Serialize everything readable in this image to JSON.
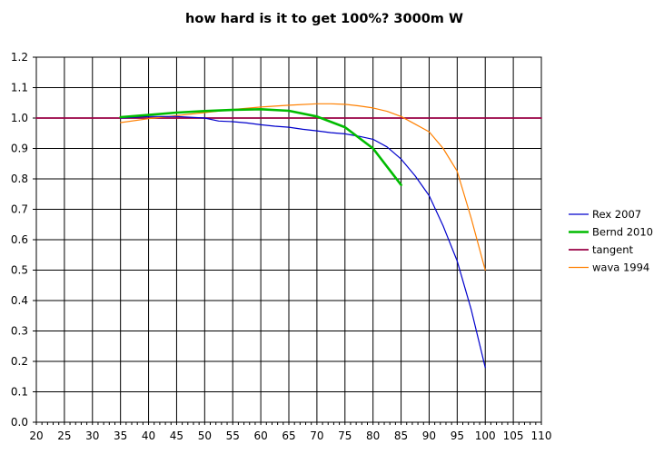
{
  "chart_data": {
    "type": "line",
    "title": "how hard is it to get 100%? 3000m W",
    "xlabel": "",
    "ylabel": "",
    "xlim": [
      20,
      110
    ],
    "ylim": [
      0,
      1.2
    ],
    "x_ticks": [
      20,
      25,
      30,
      35,
      40,
      45,
      50,
      55,
      60,
      65,
      70,
      75,
      80,
      85,
      90,
      95,
      100,
      105,
      110
    ],
    "y_ticks": [
      "0.0",
      "0.1",
      "0.2",
      "0.3",
      "0.4",
      "0.5",
      "0.6",
      "0.7",
      "0.8",
      "0.9",
      "1.0",
      "1.1",
      "1.2"
    ],
    "grid": true,
    "legend_position": "right",
    "series": [
      {
        "name": "Rex 2007",
        "color": "#0000cc",
        "x": [
          35,
          40,
          45,
          50,
          52.5,
          55,
          57.5,
          60,
          62.5,
          65,
          67.5,
          70,
          72.5,
          75,
          77.5,
          80,
          82.5,
          85,
          87.5,
          90,
          92.5,
          95,
          97.5,
          100
        ],
        "values": [
          1.0,
          1.005,
          1.005,
          1.0,
          0.99,
          0.988,
          0.984,
          0.978,
          0.973,
          0.97,
          0.963,
          0.958,
          0.952,
          0.948,
          0.94,
          0.93,
          0.905,
          0.865,
          0.81,
          0.745,
          0.645,
          0.53,
          0.37,
          0.18
        ]
      },
      {
        "name": "Bernd 2010",
        "color": "#00bb00",
        "x": [
          35,
          40,
          45,
          50,
          55,
          60,
          65,
          70,
          75,
          80,
          85
        ],
        "values": [
          1.003,
          1.01,
          1.018,
          1.023,
          1.027,
          1.029,
          1.024,
          1.005,
          0.97,
          0.9,
          0.78
        ]
      },
      {
        "name": "tangent",
        "color": "#990044",
        "x": [
          20,
          110
        ],
        "values": [
          1.0,
          1.0
        ]
      },
      {
        "name": "wava 1994",
        "color": "#ff8000",
        "x": [
          35,
          40,
          45,
          50,
          55,
          60,
          65,
          70,
          72.5,
          75,
          77.5,
          80,
          82.5,
          85,
          87.5,
          90,
          92.5,
          95,
          97.5,
          100
        ],
        "values": [
          0.985,
          0.998,
          1.008,
          1.018,
          1.028,
          1.036,
          1.042,
          1.047,
          1.047,
          1.045,
          1.04,
          1.033,
          1.022,
          1.005,
          0.98,
          0.955,
          0.9,
          0.825,
          0.67,
          0.5
        ]
      }
    ]
  }
}
